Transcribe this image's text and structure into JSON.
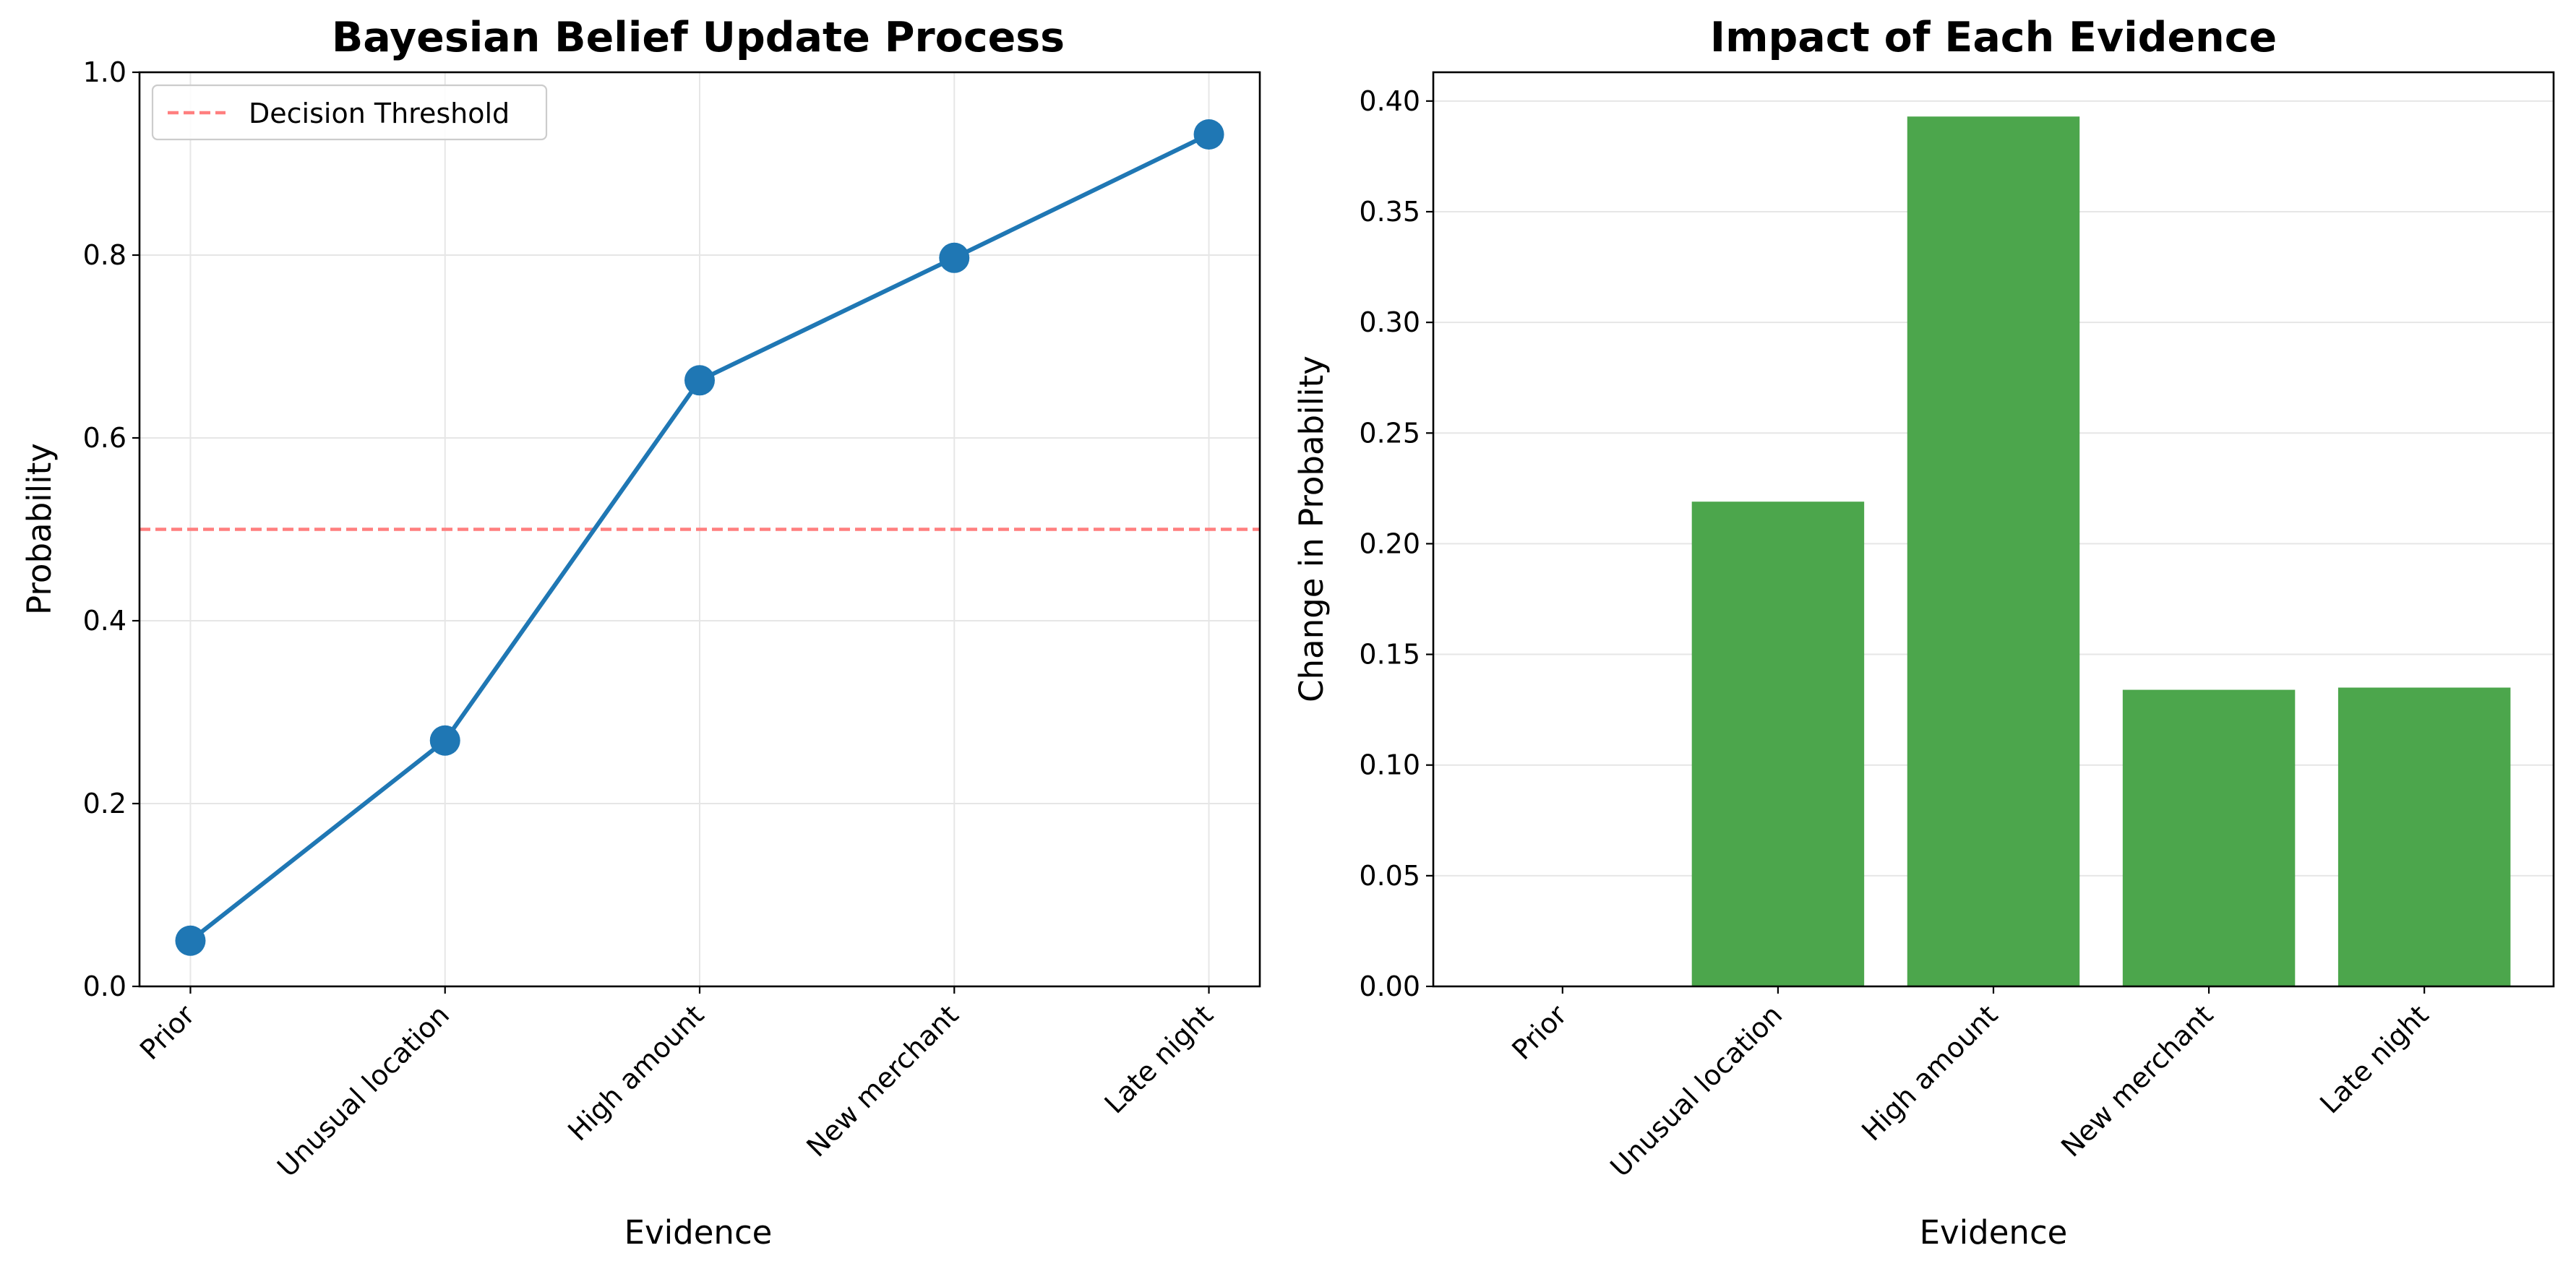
{
  "chart_data": [
    {
      "type": "line",
      "title": "Bayesian Belief Update Process",
      "xlabel": "Evidence",
      "ylabel": "Probability",
      "categories": [
        "Prior",
        "Unusual location",
        "High amount",
        "New merchant",
        "Late night"
      ],
      "series": [
        {
          "values": [
            0.05,
            0.269,
            0.663,
            0.797,
            0.932
          ],
          "color": "#1f77b4",
          "marker": "circle"
        }
      ],
      "reference_lines": [
        {
          "name": "Decision Threshold",
          "y": 0.5,
          "color": "#ff7f7f",
          "style": "dashed"
        }
      ],
      "ylim": [
        0,
        1.0
      ],
      "yticks": [
        0.0,
        0.2,
        0.4,
        0.6,
        0.8,
        1.0
      ],
      "ytick_labels": [
        "0.0",
        "0.2",
        "0.4",
        "0.6",
        "0.8",
        "1.0"
      ],
      "grid": true,
      "legend_position": "top-left"
    },
    {
      "type": "bar",
      "title": "Impact of Each Evidence",
      "xlabel": "Evidence",
      "ylabel": "Change in Probability",
      "categories": [
        "Prior",
        "Unusual location",
        "High amount",
        "New merchant",
        "Late night"
      ],
      "values": [
        0.0,
        0.219,
        0.393,
        0.134,
        0.135
      ],
      "color": "#4ca64c",
      "ylim": [
        0,
        0.413
      ],
      "yticks": [
        0.0,
        0.05,
        0.1,
        0.15,
        0.2,
        0.25,
        0.3,
        0.35,
        0.4
      ],
      "ytick_labels": [
        "0.00",
        "0.05",
        "0.10",
        "0.15",
        "0.20",
        "0.25",
        "0.30",
        "0.35",
        "0.40"
      ],
      "grid": true
    }
  ]
}
